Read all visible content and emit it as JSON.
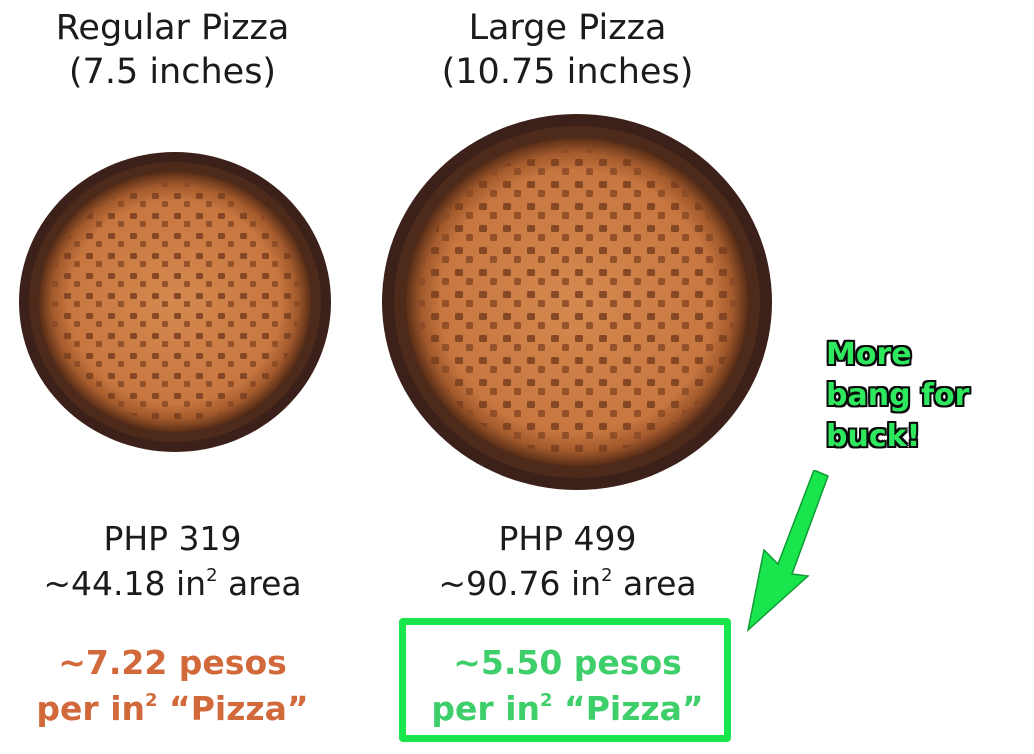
{
  "regular": {
    "title_line1": "Regular Pizza",
    "title_line2": "(7.5 inches)",
    "price": "PHP 319",
    "area_value": "~44.18 in",
    "area_exp": "2",
    "area_suffix": " area",
    "ppi_line1": "~7.22 pesos",
    "ppi_prefix": "per in",
    "ppi_exp": "2",
    "ppi_suffix": " “Pizza”",
    "accent": "#d2693a"
  },
  "large": {
    "title_line1": "Large Pizza",
    "title_line2": "(10.75 inches)",
    "price": "PHP 499",
    "area_value": "~90.76 in",
    "area_exp": "2",
    "area_suffix": " area",
    "ppi_line1": "~5.50 pesos",
    "ppi_prefix": "per in",
    "ppi_exp": "2",
    "ppi_suffix": " “Pizza”",
    "accent": "#3ecf6b"
  },
  "callout": {
    "line1": "More",
    "line2": "bang for",
    "line3": "buck!",
    "color": "#2ee85e",
    "arrow_color": "#19e54d"
  }
}
